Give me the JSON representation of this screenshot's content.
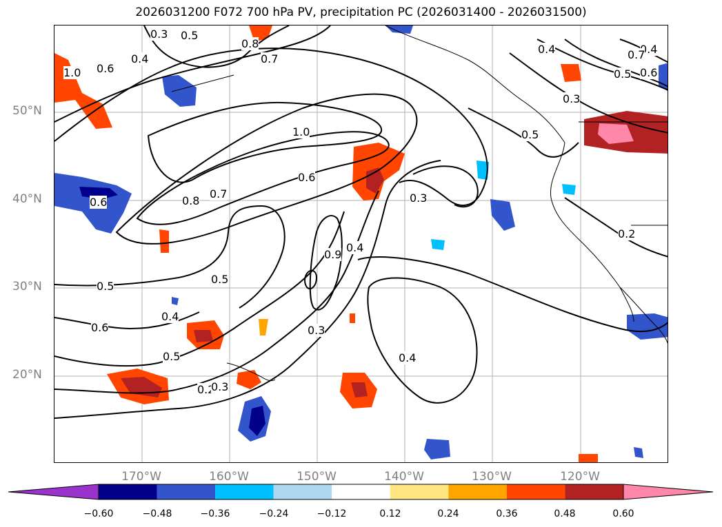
{
  "title": "2026031200 F072 700 hPa PV, precipitation PC (2026031400 - 2026031500)",
  "lat_labels": [
    "50°N",
    "40°N",
    "30°N",
    "20°N"
  ],
  "lon_labels": [
    "170°W",
    "160°W",
    "150°W",
    "140°W",
    "130°W",
    "120°W"
  ],
  "contour_labels": [
    "0.3",
    "0.5",
    "0.4",
    "0.6",
    "1.0",
    "0.8",
    "0.7",
    "1.0",
    "0.6",
    "0.8",
    "0.7",
    "0.6",
    "0.5",
    "0.9",
    "0.4",
    "0.3",
    "0.3",
    "0.5",
    "0.4",
    "0.6",
    "0.5",
    "0.2",
    "0.3",
    "0.4",
    "0.4",
    "0.3",
    "0.5",
    "0.4",
    "0.7",
    "0.5",
    "0.6",
    "0.2"
  ],
  "colorbar": {
    "ticks": [
      "−0.60",
      "−0.48",
      "−0.36",
      "−0.24",
      "−0.12",
      "0.12",
      "0.24",
      "0.36",
      "0.48",
      "0.60"
    ],
    "colors": [
      "#9933cc",
      "#00008b",
      "#3355cc",
      "#00bfff",
      "#add8f0",
      "#ffffff",
      "#ffe680",
      "#ffa500",
      "#ff4500",
      "#b22222",
      "#ff88aa"
    ]
  },
  "colors": {
    "frame": "#000000",
    "grid": "#b0b0b0",
    "axis_label": "#808080"
  }
}
